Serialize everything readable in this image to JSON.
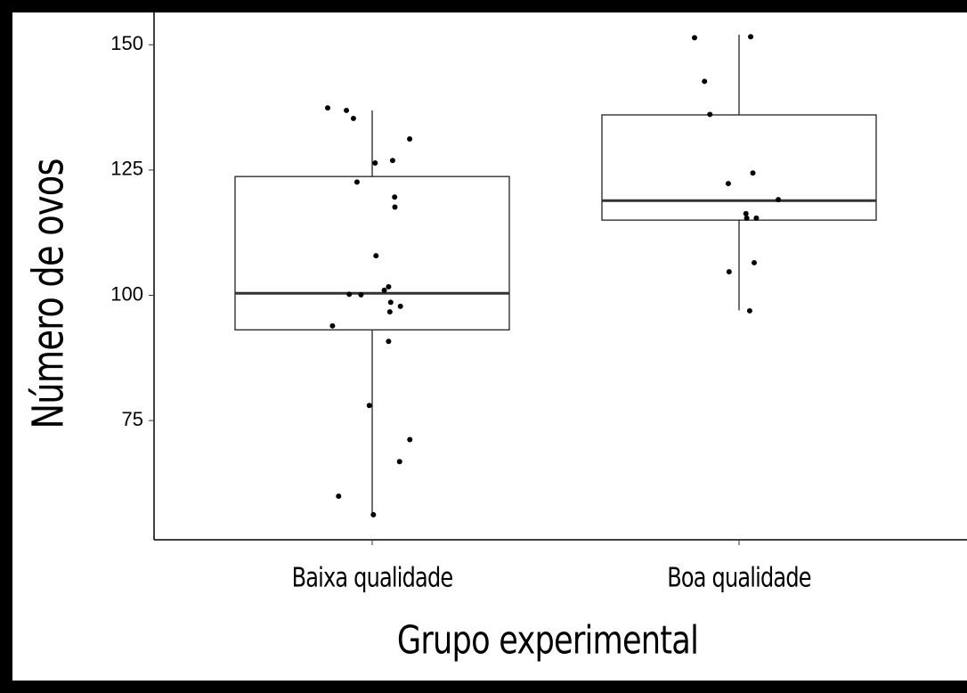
{
  "chart_data": {
    "type": "box",
    "x_label": "Grupo experimental",
    "y_label": "Número de ovos",
    "categories": [
      "Baixa qualidade",
      "Boa qualidade"
    ],
    "boxes": [
      {
        "whislo": 56.0,
        "q1": 93.1,
        "med": 100.4,
        "q3": 123.7,
        "whishi": 136.9
      },
      {
        "whislo": 97.0,
        "q1": 115.0,
        "med": 118.9,
        "q3": 136.0,
        "whishi": 152.0
      }
    ],
    "points": [
      [
        137.4,
        131.2,
        135.3,
        136.9,
        126.9,
        126.4,
        122.6,
        119.6,
        117.6,
        107.9,
        101.7,
        101.0,
        97.8,
        100.2,
        100.1,
        98.6,
        96.7,
        93.9,
        90.8,
        78.0,
        71.2,
        66.8,
        59.9,
        56.2
      ],
      [
        151.4,
        151.6,
        142.7,
        136.1,
        124.4,
        122.3,
        119.1,
        116.3,
        115.4,
        115.4,
        106.5,
        104.7,
        96.9
      ]
    ],
    "ylim": [
      51.2,
      156.8
    ],
    "yticks": [
      75,
      100,
      125,
      150
    ]
  }
}
